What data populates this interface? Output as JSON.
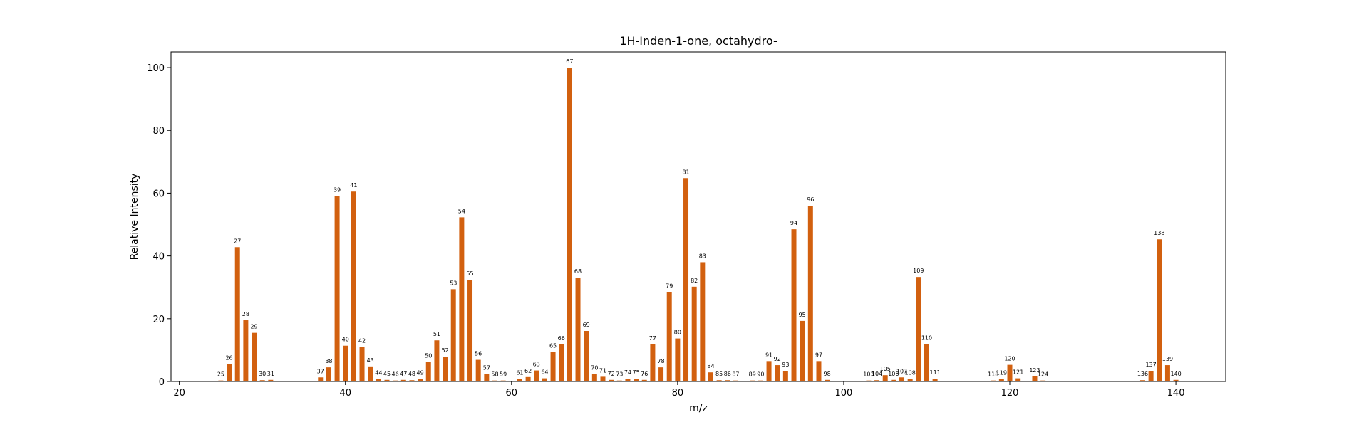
{
  "chart_data": {
    "type": "bar",
    "title": "1H-Inden-1-one, octahydro-",
    "xlabel": "m/z",
    "ylabel": "Relative Intensity",
    "xlim": [
      19,
      146
    ],
    "ylim": [
      0,
      105
    ],
    "xticks": [
      20,
      40,
      60,
      80,
      100,
      120,
      140
    ],
    "yticks": [
      0,
      20,
      40,
      60,
      80,
      100
    ],
    "bar_color": "#d2600f",
    "grid": false,
    "x": [
      25,
      26,
      27,
      28,
      29,
      30,
      31,
      37,
      38,
      39,
      40,
      41,
      42,
      43,
      44,
      45,
      46,
      47,
      48,
      49,
      50,
      51,
      52,
      53,
      54,
      55,
      56,
      57,
      58,
      59,
      61,
      62,
      63,
      64,
      65,
      66,
      67,
      68,
      69,
      70,
      71,
      72,
      73,
      74,
      75,
      76,
      77,
      78,
      79,
      80,
      81,
      82,
      83,
      84,
      85,
      86,
      87,
      89,
      90,
      91,
      92,
      93,
      94,
      95,
      96,
      97,
      98,
      103,
      104,
      105,
      106,
      107,
      108,
      109,
      110,
      111,
      118,
      119,
      120,
      121,
      123,
      124,
      136,
      137,
      138,
      139,
      140
    ],
    "values": [
      0.3,
      5.5,
      42.8,
      19.5,
      15.5,
      0.4,
      0.5,
      1.3,
      4.5,
      59.1,
      11.4,
      60.5,
      11.0,
      4.8,
      0.8,
      0.5,
      0.3,
      0.5,
      0.4,
      0.8,
      6.2,
      13.1,
      7.9,
      29.4,
      52.3,
      32.4,
      6.9,
      2.4,
      0.3,
      0.3,
      0.8,
      1.4,
      3.5,
      1.0,
      9.4,
      11.8,
      100,
      33.1,
      16.1,
      2.4,
      1.5,
      0.5,
      0.3,
      0.9,
      0.9,
      0.5,
      11.8,
      4.5,
      28.5,
      13.7,
      64.8,
      30.2,
      38.0,
      2.9,
      0.4,
      0.4,
      0.3,
      0.3,
      0.3,
      6.5,
      5.2,
      3.4,
      48.5,
      19.3,
      56.0,
      6.5,
      0.5,
      0.3,
      0.4,
      2.0,
      0.5,
      1.3,
      0.8,
      33.3,
      11.9,
      0.9,
      0.3,
      0.8,
      5.3,
      1.0,
      1.6,
      0.3,
      0.4,
      3.4,
      45.3,
      5.2,
      0.5
    ]
  }
}
